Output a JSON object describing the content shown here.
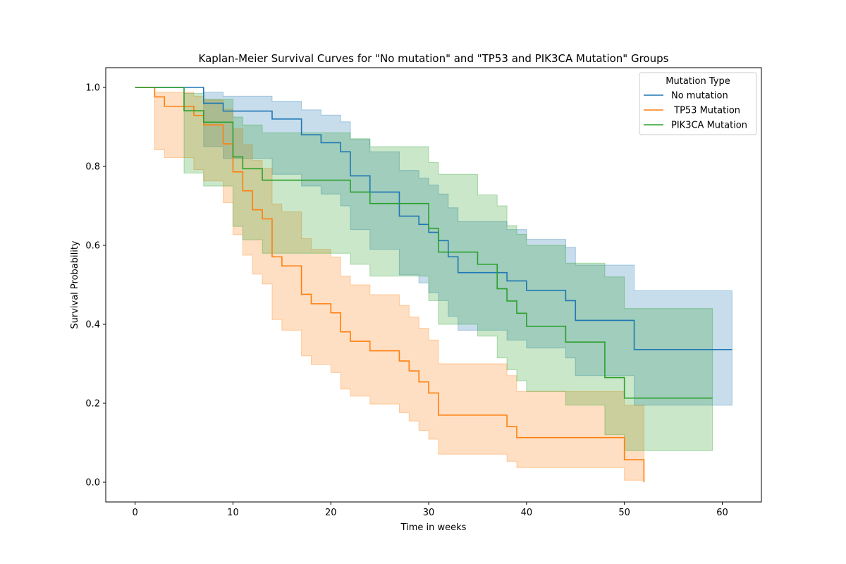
{
  "chart_data": {
    "type": "line",
    "subtype": "kaplan-meier-step",
    "title": "Kaplan-Meier Survival Curves for \"No mutation\" and \"TP53 and PIK3CA Mutation\" Groups",
    "xlabel": "Time in weeks",
    "ylabel": "Survival Probability",
    "xlim": [
      -3,
      64
    ],
    "ylim": [
      -0.05,
      1.05
    ],
    "xticks": [
      0,
      10,
      20,
      30,
      40,
      50,
      60
    ],
    "yticks": [
      0.0,
      0.2,
      0.4,
      0.6,
      0.8,
      1.0
    ],
    "xtick_labels": [
      "0",
      "10",
      "20",
      "30",
      "40",
      "50",
      "60"
    ],
    "ytick_labels": [
      "0.0",
      "0.2",
      "0.4",
      "0.6",
      "0.8",
      "1.0"
    ],
    "grid": false,
    "legend": {
      "title": "Mutation Type",
      "placement": "top-right"
    },
    "series": [
      {
        "name": "No mutation",
        "color": "#1f77b4",
        "x": [
          0,
          7,
          9,
          14,
          17,
          19,
          21,
          22,
          24,
          27,
          29,
          30,
          31,
          32,
          33,
          38,
          40,
          44,
          45,
          51,
          61
        ],
        "y": [
          1.0,
          0.96,
          0.94,
          0.92,
          0.88,
          0.86,
          0.837,
          0.776,
          0.735,
          0.674,
          0.653,
          0.633,
          0.612,
          0.571,
          0.531,
          0.51,
          0.486,
          0.46,
          0.41,
          0.336,
          0.336
        ],
        "ci_lower": [
          1.0,
          0.85,
          0.82,
          0.78,
          0.75,
          0.73,
          0.7,
          0.64,
          0.59,
          0.525,
          0.505,
          0.48,
          0.46,
          0.42,
          0.385,
          0.36,
          0.34,
          0.315,
          0.27,
          0.195,
          0.195
        ],
        "ci_upper": [
          1.0,
          0.988,
          0.978,
          0.965,
          0.943,
          0.93,
          0.913,
          0.868,
          0.837,
          0.79,
          0.77,
          0.753,
          0.73,
          0.695,
          0.66,
          0.64,
          0.615,
          0.595,
          0.55,
          0.485,
          0.485
        ]
      },
      {
        "name": " TP53 Mutation",
        "color": "#ff7f0e",
        "x": [
          0,
          2,
          3,
          6,
          7,
          9,
          10,
          11,
          12,
          13,
          14,
          15,
          17,
          18,
          20,
          21,
          22,
          24,
          27,
          28,
          29,
          30,
          31,
          38,
          39,
          50,
          52
        ],
        "y": [
          1.0,
          0.976,
          0.952,
          0.929,
          0.905,
          0.857,
          0.786,
          0.738,
          0.69,
          0.667,
          0.571,
          0.548,
          0.476,
          0.452,
          0.429,
          0.381,
          0.357,
          0.333,
          0.307,
          0.282,
          0.254,
          0.226,
          0.17,
          0.141,
          0.113,
          0.057,
          0.0
        ],
        "ci_lower": [
          1.0,
          0.842,
          0.822,
          0.792,
          0.763,
          0.708,
          0.627,
          0.575,
          0.527,
          0.502,
          0.412,
          0.385,
          0.32,
          0.298,
          0.278,
          0.236,
          0.218,
          0.198,
          0.176,
          0.155,
          0.131,
          0.109,
          0.071,
          0.053,
          0.037,
          0.005,
          0.005
        ],
        "ci_upper": [
          1.0,
          0.988,
          0.988,
          0.978,
          0.968,
          0.945,
          0.895,
          0.855,
          0.815,
          0.795,
          0.705,
          0.685,
          0.617,
          0.59,
          0.57,
          0.522,
          0.5,
          0.475,
          0.448,
          0.418,
          0.39,
          0.36,
          0.3,
          0.27,
          0.23,
          0.195,
          0.195
        ]
      },
      {
        "name": "PIK3CA Mutation",
        "color": "#2ca02c",
        "x": [
          0,
          5,
          7,
          10,
          11,
          13,
          22,
          24,
          30,
          31,
          35,
          37,
          38,
          39,
          40,
          44,
          48,
          50,
          59
        ],
        "y": [
          1.0,
          0.941,
          0.912,
          0.824,
          0.794,
          0.765,
          0.735,
          0.706,
          0.643,
          0.583,
          0.552,
          0.49,
          0.459,
          0.428,
          0.395,
          0.355,
          0.265,
          0.213,
          0.213
        ],
        "ci_lower": [
          1.0,
          0.783,
          0.75,
          0.648,
          0.614,
          0.58,
          0.552,
          0.522,
          0.46,
          0.4,
          0.37,
          0.315,
          0.285,
          0.257,
          0.23,
          0.195,
          0.12,
          0.08,
          0.08
        ],
        "ci_upper": [
          1.0,
          0.985,
          0.97,
          0.925,
          0.905,
          0.885,
          0.87,
          0.85,
          0.81,
          0.78,
          0.728,
          0.7,
          0.65,
          0.628,
          0.6,
          0.555,
          0.52,
          0.44,
          0.388
        ]
      }
    ]
  }
}
